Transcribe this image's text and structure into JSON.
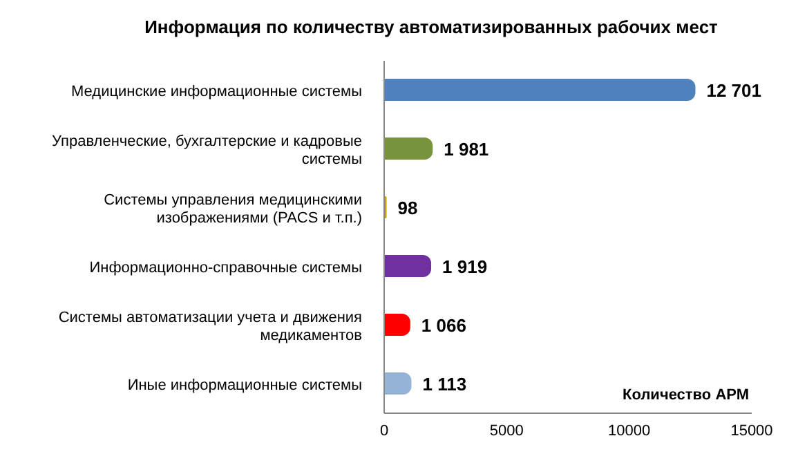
{
  "chart_data": {
    "type": "bar",
    "orientation": "horizontal",
    "title": "Информация по количеству автоматизированных рабочих мест",
    "xlabel": "Количество  АРМ",
    "categories": [
      "Медицинские информационные системы",
      "Управленческие, бухгалтерские и кадровые системы",
      "Системы управления медицинскими изображениями (PACS и т.п.)",
      "Информационно-справочные  системы",
      "Системы автоматизации  учета и движения медикаментов",
      "Иные информационные  системы"
    ],
    "values": [
      12701,
      1981,
      98,
      1919,
      1066,
      1113
    ],
    "value_labels": [
      "12 701",
      "1 981",
      "98",
      "1 919",
      "1 066",
      "1 113"
    ],
    "colors": [
      "#4f81bd",
      "#77933c",
      "#c9a100",
      "#7030a0",
      "#ff0000",
      "#95b3d7"
    ],
    "xlim": [
      0,
      15000
    ],
    "xticks": [
      0,
      5000,
      10000,
      15000
    ],
    "grid": false
  }
}
